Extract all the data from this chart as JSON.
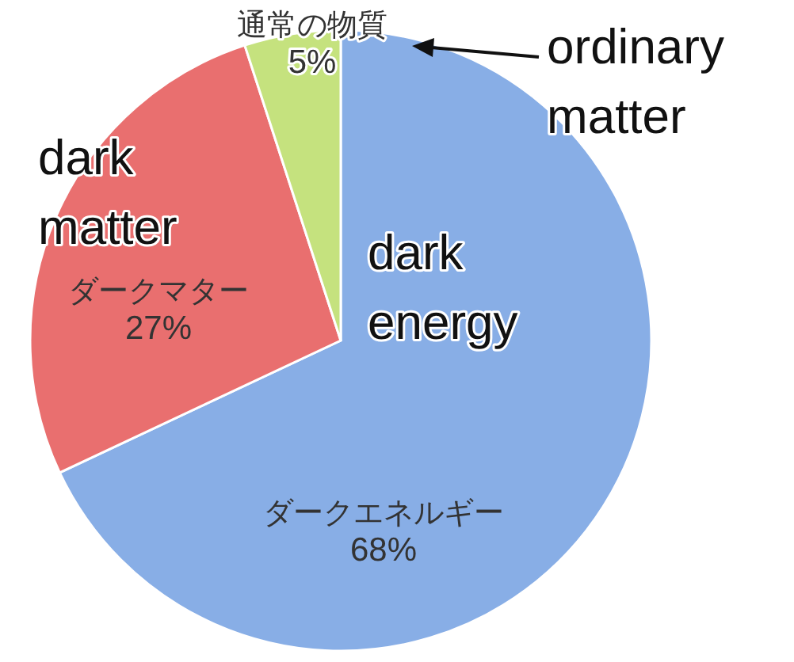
{
  "chart_data": {
    "type": "pie",
    "categories": [
      "ダークエネルギー",
      "ダークマター",
      "通常の物質"
    ],
    "values": [
      68,
      27,
      5
    ],
    "value_labels": [
      "68%",
      "27%",
      "5%"
    ],
    "colors": [
      "#88aee6",
      "#e96f6f",
      "#c5e27e"
    ],
    "annotations": [
      "ordinary matter",
      "dark matter",
      "dark energy"
    ]
  }
}
